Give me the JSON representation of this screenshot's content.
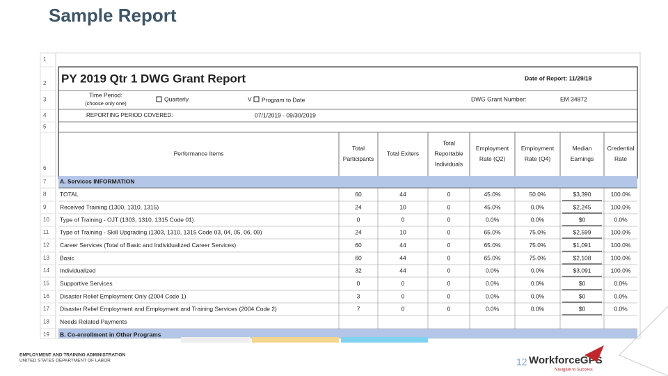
{
  "title": "Sample Report",
  "sheet": {
    "row_numbers": [
      1,
      2,
      3,
      4,
      5,
      6,
      7,
      8,
      9,
      10,
      11,
      12,
      13,
      14,
      15,
      16,
      17,
      18,
      19
    ],
    "report_title": "PY 2019 Qtr 1   DWG Grant Report",
    "date_of_report": "Date of Report: 11/29/19",
    "time_period_label": "Time Period:",
    "choose_note": "(choose only one)",
    "option_quarterly": "Quarterly",
    "option_program_to_date": "Program to Date",
    "grant_number_label": "DWG Grant Number:",
    "grant_number": "EM 34872",
    "reporting_period_label": "REPORTING PERIOD COVERED:",
    "reporting_period": "07/1/2019 - 09/30/2019",
    "headers": [
      [
        "Performance Items"
      ],
      [
        "Total",
        "Participants"
      ],
      [
        "Total Exiters"
      ],
      [
        "Total",
        "Reportable",
        "Individuals"
      ],
      [
        "Employment",
        "Rate (Q2)"
      ],
      [
        "Employment",
        "Rate (Q4)"
      ],
      [
        "Median",
        "Earnings"
      ],
      [
        "Credential",
        "Rate"
      ]
    ],
    "section_a": "A. Services INFORMATION",
    "rows": [
      [
        "TOTAL",
        "60",
        "44",
        "0",
        "45.0%",
        "50.0%",
        "$3,390",
        "100.0%"
      ],
      [
        "Received Training (1300, 1310, 1315)",
        "24",
        "10",
        "0",
        "45.0%",
        "0.0%",
        "$2,245",
        "100.0%"
      ],
      [
        "Type of Training - OJT (1303, 1310, 1315 Code 01)",
        "0",
        "0",
        "0",
        "0.0%",
        "0.0%",
        "$0",
        "0.0%"
      ],
      [
        "Type of Training - Skill Upgrading (1303, 1310, 1315 Code 03, 04, 05, 06, 09)",
        "24",
        "10",
        "0",
        "65.0%",
        "75.0%",
        "$2,599",
        "100.0%"
      ],
      [
        "Career Services (Total of Basic and Individualized Career Services)",
        "60",
        "44",
        "0",
        "65.0%",
        "75.0%",
        "$1,091",
        "100.0%"
      ],
      [
        "Basic",
        "60",
        "44",
        "0",
        "65.0%",
        "75.0%",
        "$2,108",
        "100.0%"
      ],
      [
        "Individualized",
        "32",
        "44",
        "0",
        "0.0%",
        "0.0%",
        "$3,091",
        "100.0%"
      ],
      [
        "Supportive Services",
        "0",
        "0",
        "0",
        "0.0%",
        "0.0%",
        "$0",
        "0.0%"
      ],
      [
        "Disaster Relief Employment Only (2004 Code 1)",
        "3",
        "0",
        "0",
        "0.0%",
        "0.0%",
        "$0",
        "0.0%"
      ],
      [
        "Disaster Relief Employment and Employment and Training Services (2004 Code 2)",
        "7",
        "0",
        "0",
        "0.0%",
        "0.0%",
        "$0",
        "0.0%"
      ],
      [
        "Needs Related Payments"
      ]
    ],
    "section_b": "B. Co-enrollment in Other Programs"
  },
  "footer": {
    "agency_line1": "EMPLOYMENT AND TRAINING ADMINISTRATION",
    "agency_line2": "UNITED STATES DEPARTMENT OF LABOR",
    "page_number": "12",
    "brand": "WorkforceGPS",
    "tagline": "Navigate to Success"
  }
}
